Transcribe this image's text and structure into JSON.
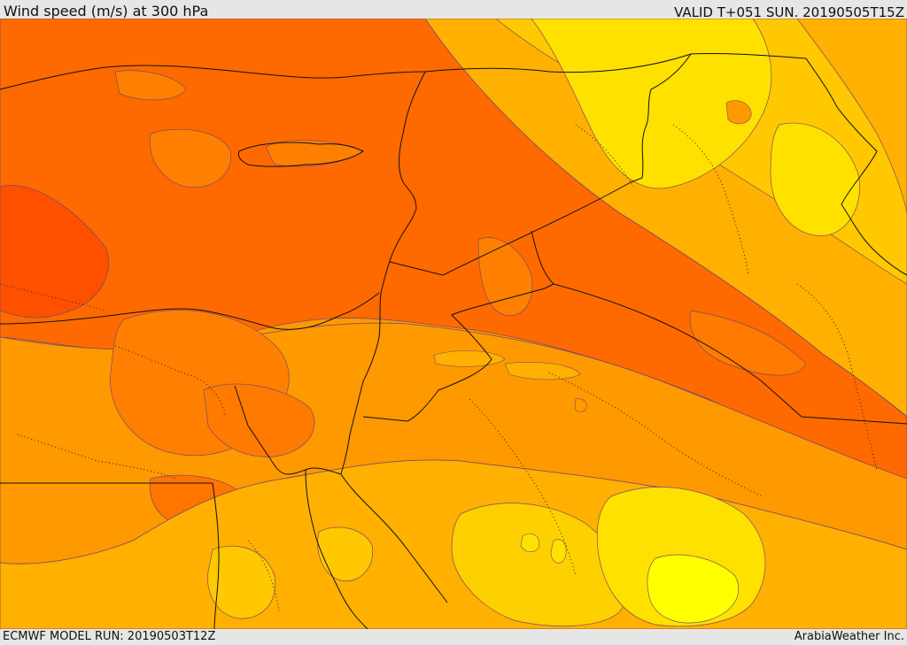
{
  "header": {
    "title": "Wind speed (m/s) at 300 hPa",
    "valid": "VALID T+051 SUN. 20190505T15Z"
  },
  "footer": {
    "model_run": "ECMWF MODEL RUN: 20190503T12Z",
    "credit": "ArabiaWeather Inc."
  },
  "map": {
    "variable": "wind speed at 300 hPa",
    "palette": [
      "#ffff00",
      "#ffe100",
      "#ffc800",
      "#ffb000",
      "#ff9900",
      "#ff8000",
      "#ff6a00",
      "#ff5000"
    ]
  }
}
